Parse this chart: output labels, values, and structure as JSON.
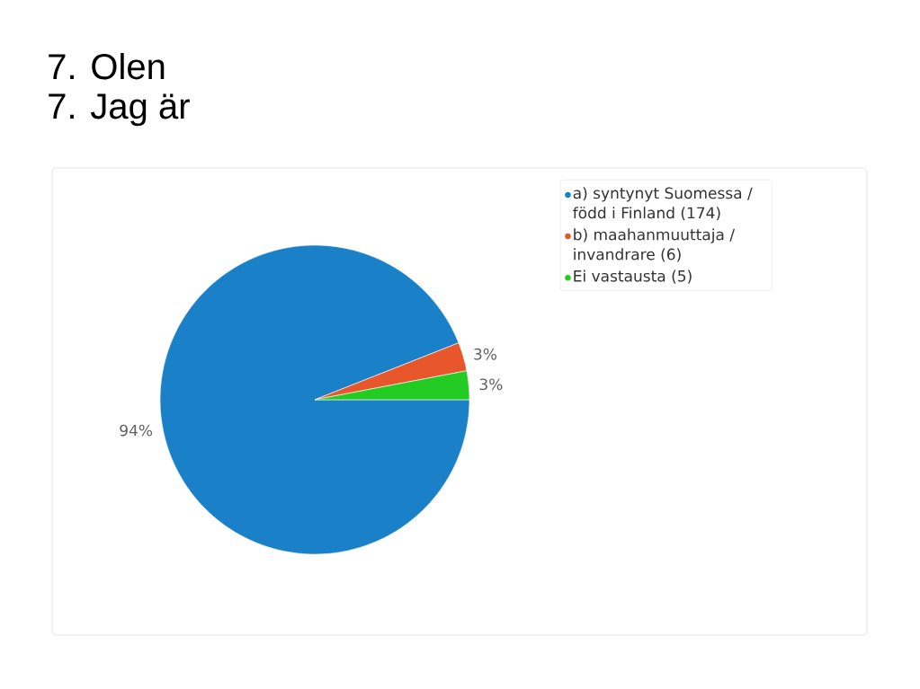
{
  "chart_data": {
    "type": "pie",
    "title": "7. Olen",
    "subtitle": "7. Jag är",
    "categories": [
      "a) syntynyt Suomessa / född i Finland (174)",
      "b) maahanmuuttaja / invandrare (6)",
      "Ei vastausta (5)"
    ],
    "values": [
      94,
      3,
      3
    ],
    "colors": [
      "#1a80c8",
      "#e8572b",
      "#22cc22"
    ],
    "value_labels": [
      "94%",
      "3%",
      "3%"
    ],
    "legend": "top right"
  }
}
